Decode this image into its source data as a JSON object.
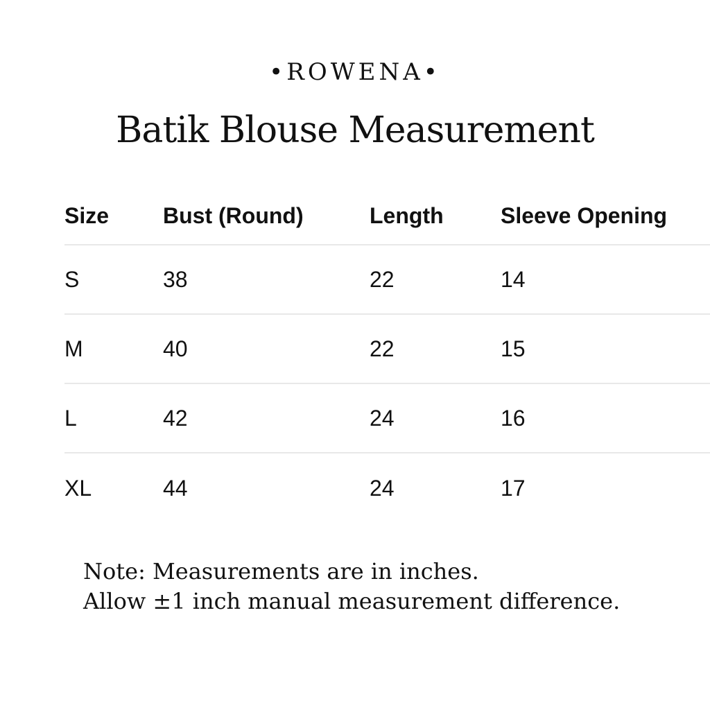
{
  "brand": "•ROWENA•",
  "title": "Batik Blouse Measurement",
  "table": {
    "headers": [
      "Size",
      "Bust (Round)",
      "Length",
      "Sleeve Opening"
    ],
    "rows": [
      [
        "S",
        "38",
        "22",
        "14"
      ],
      [
        "M",
        "40",
        "22",
        "15"
      ],
      [
        "L",
        "42",
        "24",
        "16"
      ],
      [
        "XL",
        "44",
        "24",
        "17"
      ]
    ]
  },
  "notes": [
    "Note: Measurements are in inches.",
    "Allow ±1 inch manual measurement difference."
  ]
}
